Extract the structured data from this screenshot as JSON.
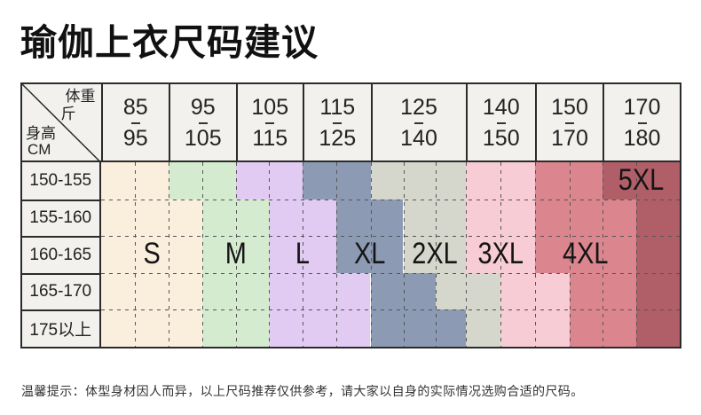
{
  "title": "瑜伽上衣尺码建议",
  "footer_note": "温馨提示：体型身材因人而异，以上尺码推荐仅供参考，请大家以自身的实际情况选购合适的尺码。",
  "table": {
    "corner": {
      "weight_label": "体重",
      "weight_unit": "斤",
      "height_label": "身高",
      "height_unit": "CM"
    },
    "weight_columns": [
      {
        "from": "85",
        "to": "95"
      },
      {
        "from": "95",
        "to": "105"
      },
      {
        "from": "105",
        "to": "115"
      },
      {
        "from": "115",
        "to": "125"
      },
      {
        "from": "125",
        "to": "140"
      },
      {
        "from": "140",
        "to": "150"
      },
      {
        "from": "150",
        "to": "170"
      },
      {
        "from": "170",
        "to": "180"
      }
    ],
    "height_rows": [
      "150-155",
      "155-160",
      "160-165",
      "165-170",
      "175以上"
    ]
  },
  "chart_data": {
    "type": "table",
    "title": "瑜伽上衣尺码建议",
    "column_axis": {
      "label": "体重",
      "unit": "斤",
      "ranges": [
        "85-95",
        "95-105",
        "105-115",
        "115-125",
        "125-140",
        "140-150",
        "150-170",
        "170-180"
      ]
    },
    "row_axis": {
      "label": "身高",
      "unit": "CM",
      "ranges": [
        "150-155",
        "155-160",
        "160-165",
        "165-170",
        "175以上"
      ]
    },
    "sizes": [
      {
        "label": "S",
        "color": "#faeedd"
      },
      {
        "label": "M",
        "color": "#d5ebd0"
      },
      {
        "label": "L",
        "color": "#e2cbf3"
      },
      {
        "label": "XL",
        "color": "#8c9ab3"
      },
      {
        "label": "2XL",
        "color": "#d5d7cc"
      },
      {
        "label": "3XL",
        "color": "#f7ccd4"
      },
      {
        "label": "4XL",
        "color": "#db858e"
      },
      {
        "label": "5XL",
        "color": "#b05f68"
      }
    ],
    "fine_grid_columns": 17,
    "column_border_fine_indices": [
      0,
      2,
      4,
      6,
      8,
      11,
      13,
      15,
      17
    ],
    "rows_band_ends": [
      [
        2,
        4,
        6,
        8,
        11,
        13,
        15,
        17
      ],
      [
        3,
        5,
        7,
        9,
        11,
        13,
        16,
        17
      ],
      [
        3,
        5,
        7,
        9,
        11,
        13,
        16,
        17
      ],
      [
        3,
        5,
        8,
        10,
        12,
        14,
        16,
        17
      ],
      [
        3,
        5,
        8,
        11,
        12,
        14,
        16,
        17
      ]
    ],
    "size_label_row": [
      2,
      2,
      2,
      2,
      2,
      2,
      2,
      0
    ],
    "grid_style": "dashed",
    "legend_position": "none",
    "border_color": "#2b2b2b",
    "header_background": "#f2f1ee"
  }
}
